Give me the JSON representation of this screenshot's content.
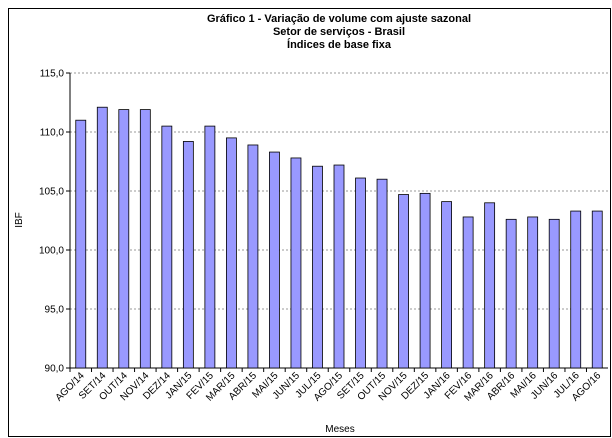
{
  "chart_data": {
    "type": "bar",
    "title": [
      "Gráfico 1 - Variação de volume com ajuste sazonal",
      "Setor de serviços - Brasil",
      "Índices de base fixa"
    ],
    "ylabel": "IBF",
    "xlabel": "Meses",
    "categories": [
      "AGO/14",
      "SET/14",
      "OUT/14",
      "NOV/14",
      "DEZ/14",
      "JAN/15",
      "FEV/15",
      "MAR/15",
      "ABR/15",
      "MAI/15",
      "JUN/15",
      "JUL/15",
      "AGO/15",
      "SET/15",
      "OUT/15",
      "NOV/15",
      "DEZ/15",
      "JAN/16",
      "FEV/16",
      "MAR/16",
      "ABR/16",
      "MAI/16",
      "JUN/16",
      "JUL/16",
      "AGO/16"
    ],
    "values": [
      111.0,
      112.1,
      111.9,
      111.9,
      110.5,
      109.2,
      110.5,
      109.5,
      108.9,
      108.3,
      107.8,
      107.1,
      107.2,
      106.1,
      106.0,
      104.7,
      104.8,
      104.1,
      102.8,
      104.0,
      102.6,
      102.8,
      102.6,
      103.3,
      103.3
    ],
    "color": "#9999ff",
    "ylim": [
      90,
      115
    ],
    "yticks": [
      {
        "value": 90,
        "label": "90,0"
      },
      {
        "value": 95,
        "label": "95,0"
      },
      {
        "value": 100,
        "label": "100,0"
      },
      {
        "value": 105,
        "label": "105,0"
      },
      {
        "value": 110,
        "label": "110,0"
      },
      {
        "value": 115,
        "label": "115,0"
      }
    ],
    "grid": true
  }
}
